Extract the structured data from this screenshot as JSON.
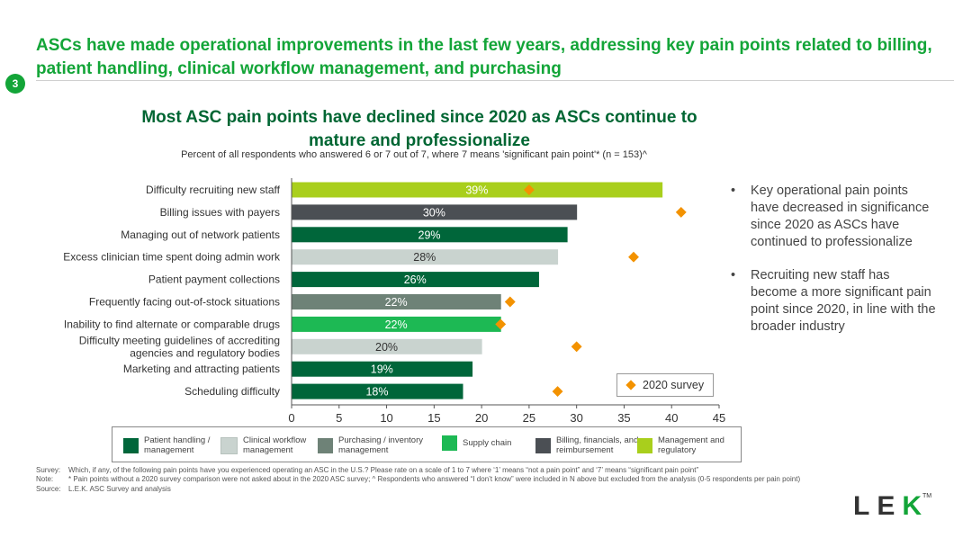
{
  "header": {
    "headline": "ASCs have made operational improvements in the last few years, addressing key pain points related to billing, patient handling, clinical workflow management, and purchasing",
    "page_number": "3"
  },
  "colors": {
    "brand_green": "#13A538",
    "dark_green": "#006633",
    "survey_marker": "#F39200"
  },
  "chart_data": {
    "type": "bar",
    "orientation": "horizontal",
    "title": "Most ASC pain points have declined since 2020 as ASCs continue to mature and professionalize",
    "subtitle": "Percent of all respondents who answered 6 or 7 out of 7, where 7 means 'significant pain point'* (n = 153)^",
    "xlim": [
      0,
      45
    ],
    "xticks": [
      0,
      5,
      10,
      15,
      20,
      25,
      30,
      35,
      40,
      45
    ],
    "categories": [
      {
        "label": [
          "Difficulty recruiting new staff"
        ],
        "value": 39,
        "value_label": "39%",
        "survey_2020": 25,
        "group": "mgmt"
      },
      {
        "label": [
          "Billing issues with payers"
        ],
        "value": 30,
        "value_label": "30%",
        "survey_2020": 41,
        "group": "billing"
      },
      {
        "label": [
          "Managing out of network patients"
        ],
        "value": 29,
        "value_label": "29%",
        "survey_2020": null,
        "group": "patient"
      },
      {
        "label": [
          "Excess clinician time spent doing admin work"
        ],
        "value": 28,
        "value_label": "28%",
        "survey_2020": 36,
        "group": "clinical"
      },
      {
        "label": [
          "Patient payment collections"
        ],
        "value": 26,
        "value_label": "26%",
        "survey_2020": null,
        "group": "patient"
      },
      {
        "label": [
          "Frequently facing out-of-stock situations"
        ],
        "value": 22,
        "value_label": "22%",
        "survey_2020": 23,
        "group": "purchasing"
      },
      {
        "label": [
          "Inability to find alternate or comparable drugs"
        ],
        "value": 22,
        "value_label": "22%",
        "survey_2020": 22,
        "group": "supply"
      },
      {
        "label": [
          "Difficulty meeting guidelines of accrediting",
          "agencies and regulatory bodies"
        ],
        "value": 20,
        "value_label": "20%",
        "survey_2020": 30,
        "group": "clinical"
      },
      {
        "label": [
          "Marketing and attracting patients"
        ],
        "value": 19,
        "value_label": "19%",
        "survey_2020": null,
        "group": "patient"
      },
      {
        "label": [
          "Scheduling difficulty"
        ],
        "value": 18,
        "value_label": "18%",
        "survey_2020": 28,
        "group": "patient"
      }
    ],
    "group_colors": {
      "patient": "#00663A",
      "clinical": "#C9D3CF",
      "purchasing": "#6E8277",
      "supply": "#1DB954",
      "billing": "#4B4F54",
      "mgmt": "#A9CF1C"
    },
    "marker_legend": "2020 survey"
  },
  "category_legend": [
    {
      "lines": [
        "Patient handling /",
        "management"
      ],
      "color": "#00663A"
    },
    {
      "lines": [
        "Clinical workflow",
        "management"
      ],
      "color": "#C9D3CF"
    },
    {
      "lines": [
        "Purchasing / inventory",
        "management"
      ],
      "color": "#6E8277"
    },
    {
      "lines": [
        "Supply chain"
      ],
      "color": "#1DB954"
    },
    {
      "lines": [
        "Billing, financials, and",
        "reimbursement"
      ],
      "color": "#4B4F54"
    },
    {
      "lines": [
        "Management and",
        "regulatory"
      ],
      "color": "#A9CF1C"
    }
  ],
  "bullets": [
    "Key operational pain points have decreased in significance since 2020 as ASCs have continued to professionalize",
    "Recruiting new staff has become a more significant pain point since 2020, in line with the broader industry"
  ],
  "footnotes": {
    "survey_label": "Survey:",
    "survey_text": "Which, if any, of the following pain points have you experienced operating an ASC in the U.S.? Please rate on a scale of 1 to 7 where ‘1’ means “not a pain point” and ‘7’ means “significant pain point”",
    "note_label": "Note:",
    "note_text": "* Pain points without a 2020 survey comparison were not asked about in the 2020 ASC survey; ^ Respondents who answered “I don’t know” were included in N above but excluded from the analysis (0-5 respondents per pain point)",
    "source_label": "Source:",
    "source_text": "L.E.K. ASC Survey and analysis"
  },
  "logo": {
    "left": "LE",
    "right": "K",
    "tm": "TM"
  }
}
